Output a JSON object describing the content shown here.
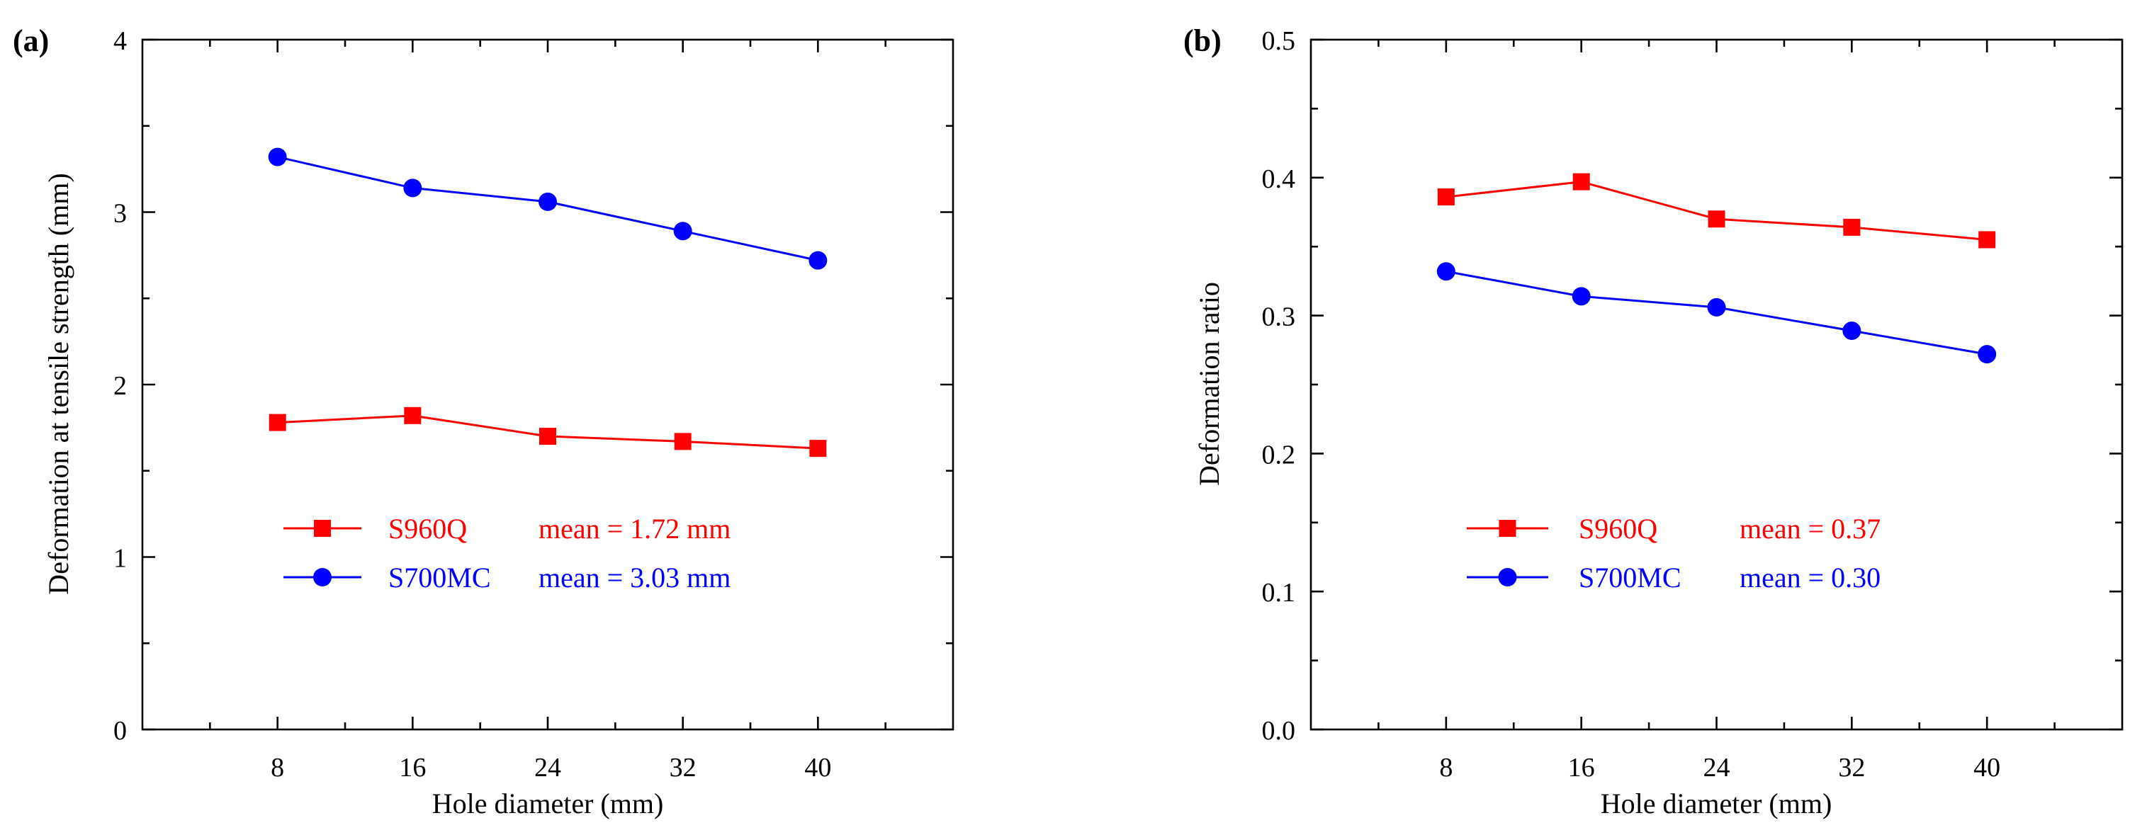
{
  "chart_data": [
    {
      "panel_label": "(a)",
      "type": "line",
      "xlabel": "Hole diameter (mm)",
      "ylabel": "Deformation at tensile strength (mm)",
      "x": [
        8,
        16,
        24,
        32,
        40
      ],
      "xticks": [
        8,
        16,
        24,
        32,
        40
      ],
      "xlim": [
        0,
        48
      ],
      "ylim": [
        0,
        4
      ],
      "yticks": [
        0,
        1,
        2,
        3,
        4
      ],
      "ytick_labels": [
        "0",
        "1",
        "2",
        "3",
        "4"
      ],
      "legend_position": "lower-left",
      "series": [
        {
          "name": "S960Q",
          "marker": "square",
          "color": "#ff0000",
          "values": [
            1.78,
            1.82,
            1.7,
            1.67,
            1.63
          ],
          "legend_text": "mean = 1.72 mm"
        },
        {
          "name": "S700MC",
          "marker": "circle",
          "color": "#0000ff",
          "values": [
            3.32,
            3.14,
            3.06,
            2.89,
            2.72
          ],
          "legend_text": "mean = 3.03 mm"
        }
      ]
    },
    {
      "panel_label": "(b)",
      "type": "line",
      "xlabel": "Hole diameter (mm)",
      "ylabel": "Deformation ratio",
      "x": [
        8,
        16,
        24,
        32,
        40
      ],
      "xticks": [
        8,
        16,
        24,
        32,
        40
      ],
      "xlim": [
        0,
        48
      ],
      "ylim": [
        0,
        0.5
      ],
      "yticks": [
        0,
        0.1,
        0.2,
        0.3,
        0.4,
        0.5
      ],
      "ytick_labels": [
        "0.0",
        "0.1",
        "0.2",
        "0.3",
        "0.4",
        "0.5"
      ],
      "legend_position": "lower-left",
      "series": [
        {
          "name": "S960Q",
          "marker": "square",
          "color": "#ff0000",
          "values": [
            0.386,
            0.397,
            0.37,
            0.364,
            0.355
          ],
          "legend_text": "mean = 0.37"
        },
        {
          "name": "S700MC",
          "marker": "circle",
          "color": "#0000ff",
          "values": [
            0.332,
            0.314,
            0.306,
            0.289,
            0.272
          ],
          "legend_text": "mean = 0.30"
        }
      ]
    }
  ]
}
